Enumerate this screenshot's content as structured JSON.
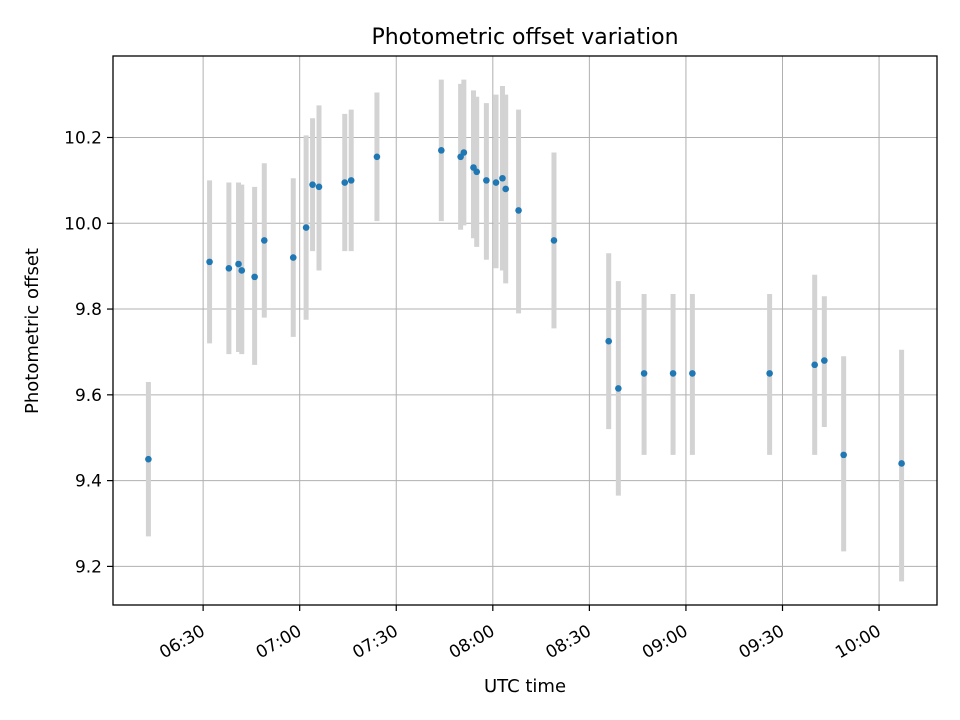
{
  "chart_data": {
    "type": "scatter",
    "title": "Photometric offset variation",
    "xlabel": "UTC time",
    "ylabel": "Photometric offset",
    "x_ticks": [
      "06:30",
      "07:00",
      "07:30",
      "08:00",
      "08:30",
      "09:00",
      "09:30",
      "10:00"
    ],
    "y_ticks": [
      "9.2",
      "9.4",
      "9.6",
      "9.8",
      "10.0",
      "10.2"
    ],
    "xlim": [
      "06:02",
      "10:18"
    ],
    "ylim": [
      9.11,
      10.39
    ],
    "grid": true,
    "error_bars": true,
    "marker_color": "#1f77b4",
    "error_bar_color": "#d3d3d3",
    "points": [
      {
        "x": "06:13",
        "y": 9.45,
        "low": 9.27,
        "high": 9.63
      },
      {
        "x": "06:32",
        "y": 9.91,
        "low": 9.72,
        "high": 10.1
      },
      {
        "x": "06:38",
        "y": 9.895,
        "low": 9.695,
        "high": 10.095
      },
      {
        "x": "06:41",
        "y": 9.905,
        "low": 9.7,
        "high": 10.095
      },
      {
        "x": "06:42",
        "y": 9.89,
        "low": 9.695,
        "high": 10.09
      },
      {
        "x": "06:46",
        "y": 9.875,
        "low": 9.67,
        "high": 10.085
      },
      {
        "x": "06:49",
        "y": 9.96,
        "low": 9.78,
        "high": 10.14
      },
      {
        "x": "06:58",
        "y": 9.92,
        "low": 9.735,
        "high": 10.105
      },
      {
        "x": "07:02",
        "y": 9.99,
        "low": 9.775,
        "high": 10.205
      },
      {
        "x": "07:04",
        "y": 10.09,
        "low": 9.935,
        "high": 10.245
      },
      {
        "x": "07:06",
        "y": 10.085,
        "low": 9.89,
        "high": 10.275
      },
      {
        "x": "07:14",
        "y": 10.095,
        "low": 9.935,
        "high": 10.255
      },
      {
        "x": "07:16",
        "y": 10.1,
        "low": 9.935,
        "high": 10.265
      },
      {
        "x": "07:24",
        "y": 10.155,
        "low": 10.005,
        "high": 10.305
      },
      {
        "x": "07:44",
        "y": 10.17,
        "low": 10.005,
        "high": 10.335
      },
      {
        "x": "07:50",
        "y": 10.155,
        "low": 9.985,
        "high": 10.325
      },
      {
        "x": "07:51",
        "y": 10.165,
        "low": 9.995,
        "high": 10.335
      },
      {
        "x": "07:54",
        "y": 10.13,
        "low": 9.965,
        "high": 10.31
      },
      {
        "x": "07:55",
        "y": 10.12,
        "low": 9.945,
        "high": 10.295
      },
      {
        "x": "07:58",
        "y": 10.1,
        "low": 9.915,
        "high": 10.28
      },
      {
        "x": "08:01",
        "y": 10.095,
        "low": 9.895,
        "high": 10.3
      },
      {
        "x": "08:03",
        "y": 10.105,
        "low": 9.89,
        "high": 10.32
      },
      {
        "x": "08:04",
        "y": 10.08,
        "low": 9.86,
        "high": 10.3
      },
      {
        "x": "08:08",
        "y": 10.03,
        "low": 9.79,
        "high": 10.265
      },
      {
        "x": "08:19",
        "y": 9.96,
        "low": 9.755,
        "high": 10.165
      },
      {
        "x": "08:36",
        "y": 9.725,
        "low": 9.52,
        "high": 9.93
      },
      {
        "x": "08:39",
        "y": 9.615,
        "low": 9.365,
        "high": 9.865
      },
      {
        "x": "08:47",
        "y": 9.65,
        "low": 9.46,
        "high": 9.835
      },
      {
        "x": "08:56",
        "y": 9.65,
        "low": 9.46,
        "high": 9.835
      },
      {
        "x": "09:02",
        "y": 9.65,
        "low": 9.46,
        "high": 9.835
      },
      {
        "x": "09:26",
        "y": 9.65,
        "low": 9.46,
        "high": 9.835
      },
      {
        "x": "09:40",
        "y": 9.67,
        "low": 9.46,
        "high": 9.88
      },
      {
        "x": "09:43",
        "y": 9.68,
        "low": 9.525,
        "high": 9.83
      },
      {
        "x": "09:49",
        "y": 9.46,
        "low": 9.235,
        "high": 9.69
      },
      {
        "x": "10:07",
        "y": 9.44,
        "low": 9.165,
        "high": 9.705
      }
    ]
  }
}
